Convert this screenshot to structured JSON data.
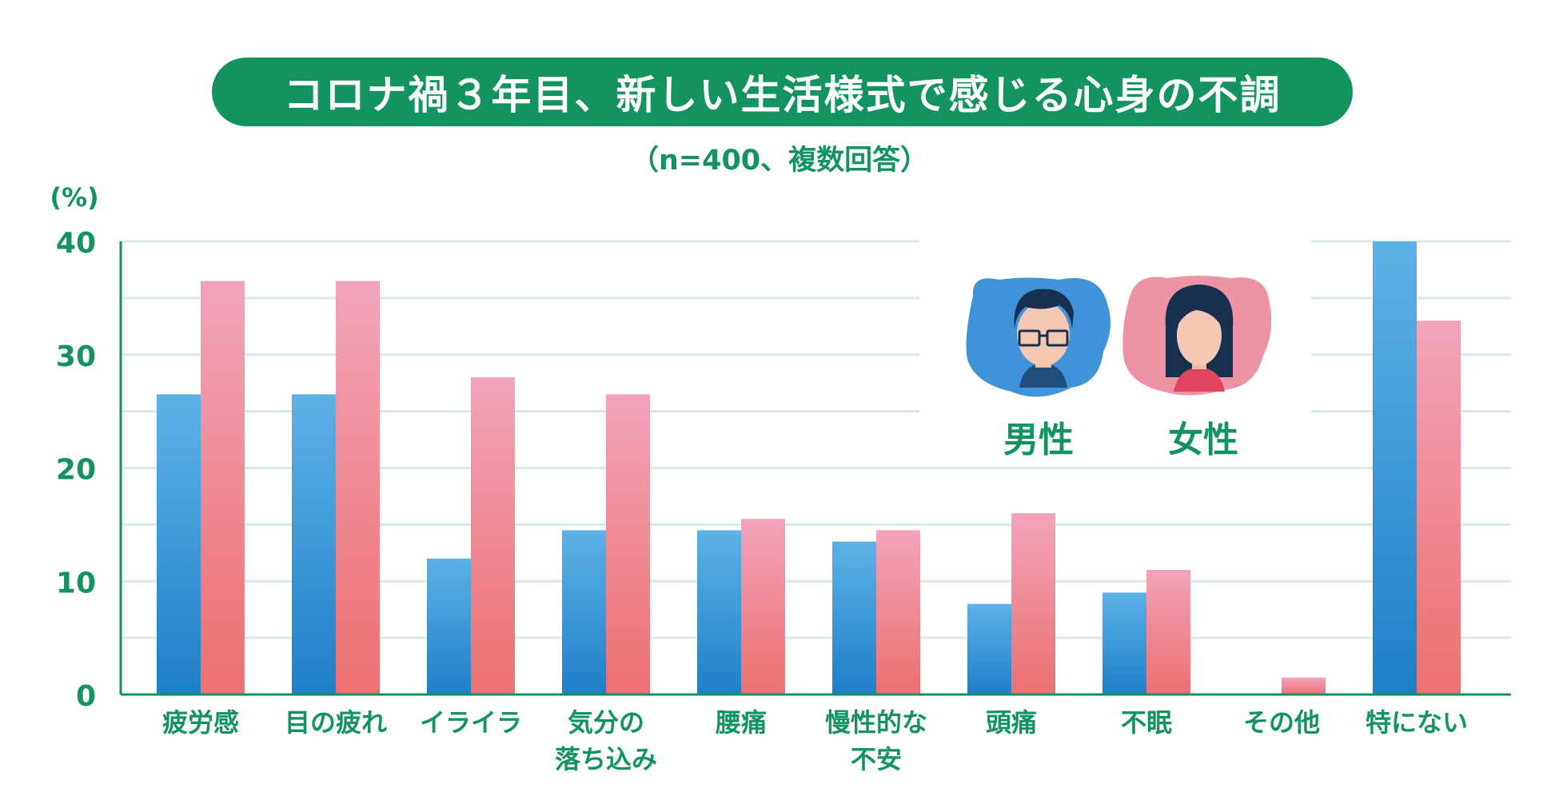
{
  "title": "コロナ禍３年目、新しい生活様式で感じる心身の不調",
  "subtitle": "（n=400、複数回答）",
  "chart_data": {
    "type": "bar",
    "ylabel": "(%)",
    "ylim": [
      0,
      40
    ],
    "yticks": [
      0,
      10,
      20,
      30,
      40
    ],
    "categories": [
      [
        "疲労感"
      ],
      [
        "目の疲れ"
      ],
      [
        "イライラ"
      ],
      [
        "気分の",
        "落ち込み"
      ],
      [
        "腰痛"
      ],
      [
        "慢性的な",
        "不安"
      ],
      [
        "頭痛"
      ],
      [
        "不眠"
      ],
      [
        "その他"
      ],
      [
        "特にない"
      ]
    ],
    "series": [
      {
        "name": "男性",
        "values": [
          26.5,
          26.5,
          12,
          14.5,
          14.5,
          13.5,
          8,
          9,
          0,
          40
        ]
      },
      {
        "name": "女性",
        "values": [
          36.5,
          36.5,
          28,
          26.5,
          15.5,
          14.5,
          16,
          11,
          1.5,
          33
        ]
      }
    ],
    "legend_position": "top-right",
    "colors": {
      "male_top": "#5db2e6",
      "male_bottom": "#1f7fc8",
      "female_top": "#f2a3ba",
      "female_bottom": "#ec7070",
      "accent": "#13935f",
      "grid": "#d8ece5"
    }
  },
  "legend": {
    "male": {
      "label": "男性",
      "icon": "man-with-glasses-icon"
    },
    "female": {
      "label": "女性",
      "icon": "woman-icon"
    }
  }
}
